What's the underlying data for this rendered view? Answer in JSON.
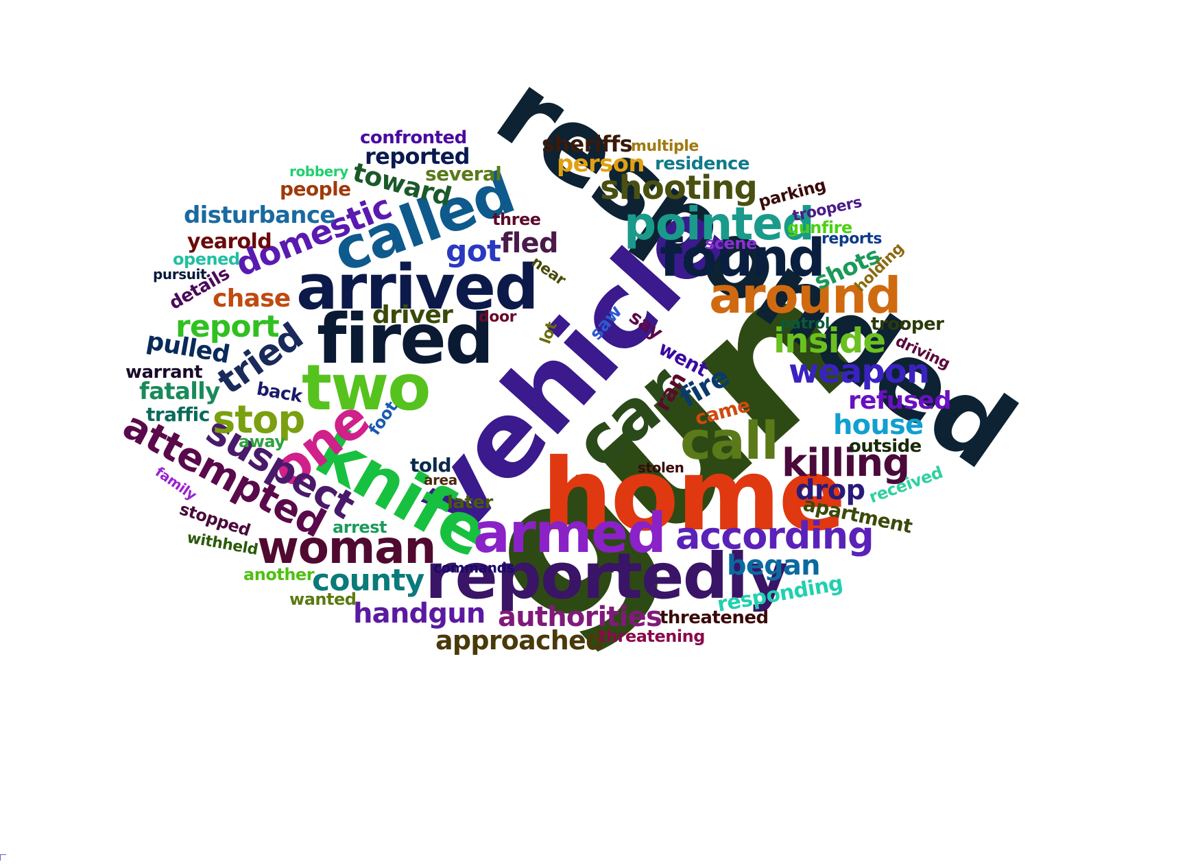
{
  "words": [
    {
      "text": "gun",
      "color": "#2d4a14"
    },
    {
      "text": "responded",
      "color": "#0d2233"
    },
    {
      "text": "vehicle",
      "color": "#3a1a8c"
    },
    {
      "text": "home",
      "color": "#e03810"
    },
    {
      "text": "arrived",
      "color": "#0c1a4a"
    },
    {
      "text": "fired",
      "color": "#0a1a33"
    },
    {
      "text": "reportedly",
      "color": "#3a1466"
    },
    {
      "text": "two",
      "color": "#56c21e"
    },
    {
      "text": "car",
      "color": "#2a4a1a"
    },
    {
      "text": "knife",
      "color": "#18c040"
    },
    {
      "text": "armed",
      "color": "#8a22c8"
    },
    {
      "text": "called",
      "color": "#0e5a8c"
    },
    {
      "text": "found",
      "color": "#0a1e40"
    },
    {
      "text": "call",
      "color": "#5a7a1a"
    },
    {
      "text": "around",
      "color": "#d06a10"
    },
    {
      "text": "woman",
      "color": "#500a30"
    },
    {
      "text": "pointed",
      "color": "#1a9a8a"
    },
    {
      "text": "one",
      "color": "#d0208a"
    },
    {
      "text": "according",
      "color": "#5a22b8"
    },
    {
      "text": "killing",
      "color": "#4a0a3a"
    },
    {
      "text": "suspect",
      "color": "#4a1a6a"
    },
    {
      "text": "attempted",
      "color": "#5a0a4a"
    },
    {
      "text": "stop",
      "color": "#7aa010"
    },
    {
      "text": "shooting",
      "color": "#4a5010"
    },
    {
      "text": "inside",
      "color": "#6ac020"
    },
    {
      "text": "weapon",
      "color": "#3a22c0"
    },
    {
      "text": "tried",
      "color": "#1a2a5a"
    },
    {
      "text": "domestic",
      "color": "#5a1ab0"
    },
    {
      "text": "report",
      "color": "#30c020"
    },
    {
      "text": "county",
      "color": "#0a7a7a"
    },
    {
      "text": "authorities",
      "color": "#801a7a"
    },
    {
      "text": "handgun",
      "color": "#5a1aa0"
    },
    {
      "text": "approached",
      "color": "#4a3a0a"
    },
    {
      "text": "began",
      "color": "#0a6aa0"
    },
    {
      "text": "house",
      "color": "#10a0d0"
    },
    {
      "text": "drop",
      "color": "#2a1a7a"
    },
    {
      "text": "refused",
      "color": "#6a10c0"
    },
    {
      "text": "got",
      "color": "#2a3ac0"
    },
    {
      "text": "fled",
      "color": "#4a1a4a"
    },
    {
      "text": "toward",
      "color": "#1a5a2a"
    },
    {
      "text": "driver",
      "color": "#3a4a0a"
    },
    {
      "text": "chase",
      "color": "#c04a10"
    },
    {
      "text": "pulled",
      "color": "#0a2a5a"
    },
    {
      "text": "disturbance",
      "color": "#1a6aa0"
    },
    {
      "text": "reported",
      "color": "#0a1a50"
    },
    {
      "text": "person",
      "color": "#e0a010"
    },
    {
      "text": "sheriffs",
      "color": "#3a1a0a"
    },
    {
      "text": "shots",
      "color": "#1a9a5a"
    },
    {
      "text": "fire",
      "color": "#0a3a6a"
    },
    {
      "text": "apartment",
      "color": "#3a4a0a"
    },
    {
      "text": "responding",
      "color": "#20d0b0"
    },
    {
      "text": "fatally",
      "color": "#1a8a5a"
    },
    {
      "text": "yearold",
      "color": "#6a0a0a"
    },
    {
      "text": "people",
      "color": "#a03a0a"
    },
    {
      "text": "several",
      "color": "#5a7a1a"
    },
    {
      "text": "confronted",
      "color": "#4a0aa0"
    },
    {
      "text": "residence",
      "color": "#107a8a"
    },
    {
      "text": "multiple",
      "color": "#a07a10"
    },
    {
      "text": "parking",
      "color": "#3a0a0a"
    },
    {
      "text": "troopers",
      "color": "#4a1a8a"
    },
    {
      "text": "gunfire",
      "color": "#4ad010"
    },
    {
      "text": "reports",
      "color": "#0a3a8a"
    },
    {
      "text": "scene",
      "color": "#8a30d0"
    },
    {
      "text": "holding",
      "color": "#8a6a10"
    },
    {
      "text": "trooper",
      "color": "#2a3a0a"
    },
    {
      "text": "driving",
      "color": "#5a0a3a"
    },
    {
      "text": "patrol",
      "color": "#0a5a3a"
    },
    {
      "text": "outside",
      "color": "#1a2a0a"
    },
    {
      "text": "received",
      "color": "#30d0a0"
    },
    {
      "text": "threatened",
      "color": "#3a0a0a"
    },
    {
      "text": "threatening",
      "color": "#8a0a4a"
    },
    {
      "text": "three",
      "color": "#5a0a2a"
    },
    {
      "text": "near",
      "color": "#4a4a0a"
    },
    {
      "text": "lot",
      "color": "#6a6a0a"
    },
    {
      "text": "door",
      "color": "#6a0a2a"
    },
    {
      "text": "saw",
      "color": "#2a5ad0"
    },
    {
      "text": "say",
      "color": "#5a0a4a"
    },
    {
      "text": "went",
      "color": "#3a0aa0"
    },
    {
      "text": "ran",
      "color": "#5a0a2a"
    },
    {
      "text": "came",
      "color": "#d04a10"
    },
    {
      "text": "back",
      "color": "#1a1a6a"
    },
    {
      "text": "foot",
      "color": "#1a5ab0"
    },
    {
      "text": "told",
      "color": "#0a2a4a"
    },
    {
      "text": "area",
      "color": "#4a2a0a"
    },
    {
      "text": "later",
      "color": "#4a5a0a"
    },
    {
      "text": "stolen",
      "color": "#3a0a0a"
    },
    {
      "text": "arrest",
      "color": "#1a9a5a"
    },
    {
      "text": "commands",
      "color": "#1a0a6a"
    },
    {
      "text": "another",
      "color": "#50c010"
    },
    {
      "text": "wanted",
      "color": "#5a7a10"
    },
    {
      "text": "withheld",
      "color": "#2a5a0a"
    },
    {
      "text": "stopped",
      "color": "#4a0a3a"
    },
    {
      "text": "family",
      "color": "#9a20d0"
    },
    {
      "text": "away",
      "color": "#30a040"
    },
    {
      "text": "traffic",
      "color": "#0a6a5a"
    },
    {
      "text": "warrant",
      "color": "#1a0a2a"
    },
    {
      "text": "details",
      "color": "#4a0a5a"
    },
    {
      "text": "pursuit",
      "color": "#0a1a3a"
    },
    {
      "text": "opened",
      "color": "#20c0a0"
    },
    {
      "text": "robbery",
      "color": "#20d070"
    }
  ]
}
